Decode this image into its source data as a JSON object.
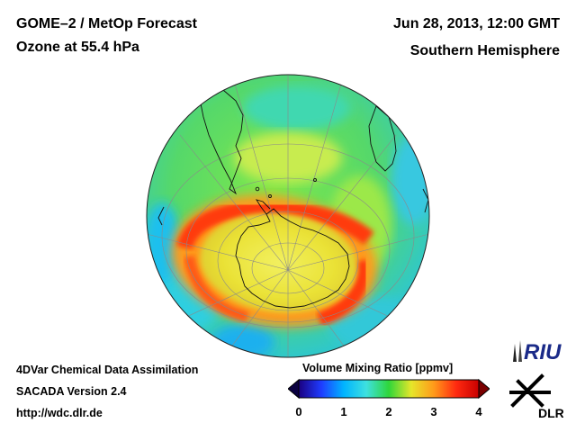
{
  "header": {
    "title_line1": "GOME–2 / MetOp Forecast",
    "title_line2": "Ozone at 55.4 hPa",
    "datetime": "Jun 28, 2013, 12:00 GMT",
    "hemisphere": "Southern Hemisphere"
  },
  "footer": {
    "line1": "4DVar Chemical Data Assimilation",
    "line2": "SACADA Version 2.4",
    "line3": "http://wdc.dlr.de"
  },
  "colorbar": {
    "title": "Volume Mixing Ratio [ppmv]",
    "ticks": [
      "0",
      "1",
      "2",
      "3",
      "4"
    ],
    "range": [
      0,
      4
    ],
    "colors": [
      "#1a0080",
      "#1f3cff",
      "#00b4ff",
      "#3ee0e0",
      "#2fd63a",
      "#e6e62a",
      "#ff9a1a",
      "#ff2a10",
      "#c80000"
    ]
  },
  "logos": {
    "riu": "RIU",
    "dlr": "DLR"
  },
  "map": {
    "projection": "orthographic, south polar",
    "field": "ozone volume mixing ratio"
  }
}
